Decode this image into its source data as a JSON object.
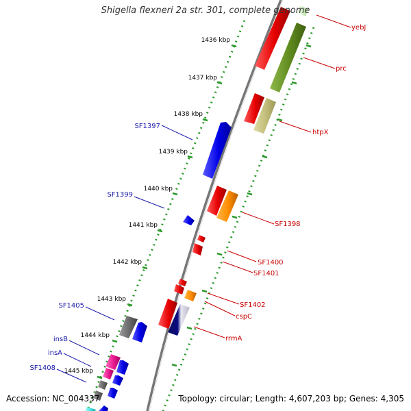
{
  "title": "Shigella flexneri 2a str. 301, complete genome",
  "footer": {
    "accession": "Accession: NC_004337",
    "summary": "Topology: circular; Length: 4,607,203 bp; Genes: 4,305"
  },
  "colors": {
    "backbone": "#7f7f7f",
    "ticks": "#2a9a2a",
    "forward_labels": "#c80000",
    "reverse_labels": "#1a1aa8"
  },
  "scale_ticks": [
    "1436 kbp",
    "1437 kbp",
    "1438 kbp",
    "1439 kbp",
    "1440 kbp",
    "1441 kbp",
    "1442 kbp",
    "1443 kbp",
    "1444 kbp",
    "1445 kbp"
  ],
  "forward_gene_labels": [
    "yebJ",
    "prc",
    "htpX",
    "SF1398",
    "SF1400",
    "SF1401",
    "SF1402",
    "cspC",
    "rrmA"
  ],
  "reverse_gene_labels": [
    "SF1397",
    "SF1399",
    "SF1405",
    "insB",
    "insA",
    "SF1408"
  ]
}
